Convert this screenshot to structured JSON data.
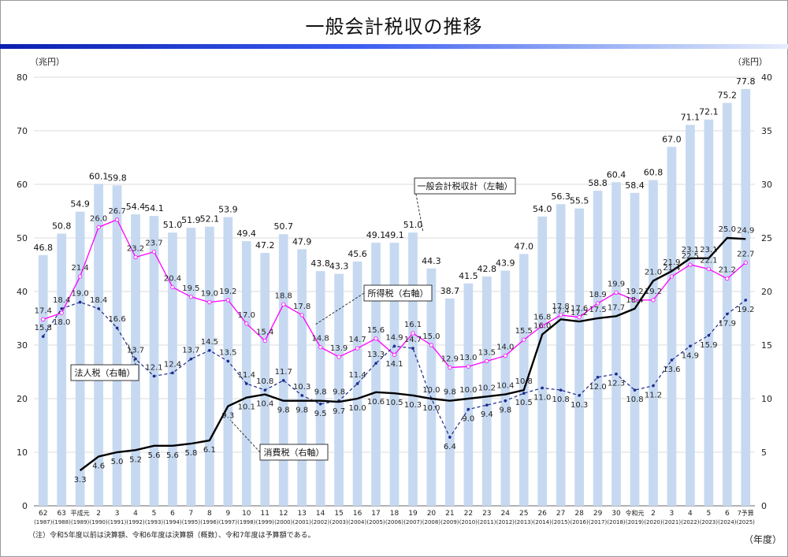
{
  "title": "一般会計税収の推移",
  "note": "（注）令和5年度以前は決算額、令和6年度は決算額（概数）、令和7年度は予算額である。",
  "colors": {
    "bar": "#c6d9f1",
    "total": "#000000",
    "income": "#ff00ff",
    "corporate": "#1b2a8a",
    "consumption": "#000000",
    "band": "#1a2fd0"
  },
  "chart_data": {
    "type": "bar",
    "title": "一般会計税収の推移",
    "ylabel_left": "（兆円）",
    "ylabel_right": "（兆円）",
    "xlabel": "（年度）",
    "ylim_left": [
      0,
      80
    ],
    "ylim_right": [
      0,
      40
    ],
    "yticks_left": [
      "0",
      "10",
      "20",
      "30",
      "40",
      "50",
      "60",
      "70",
      "80"
    ],
    "yticks_right": [
      "0",
      "5",
      "10",
      "15",
      "20",
      "25",
      "30",
      "35",
      "40"
    ],
    "grid": true,
    "categories": [
      "62",
      "63",
      "平成元",
      "2",
      "3",
      "4",
      "5",
      "6",
      "7",
      "8",
      "9",
      "10",
      "11",
      "12",
      "13",
      "14",
      "15",
      "16",
      "17",
      "18",
      "19",
      "20",
      "21",
      "22",
      "23",
      "24",
      "25",
      "26",
      "27",
      "28",
      "29",
      "30",
      "令和元",
      "2",
      "3",
      "4",
      "5",
      "6",
      "7予算"
    ],
    "years": [
      "(1987)",
      "(1988)",
      "(1989)",
      "(1990)",
      "(1991)",
      "(1992)",
      "(1993)",
      "(1994)",
      "(1995)",
      "(1996)",
      "(1997)",
      "(1998)",
      "(1999)",
      "(2000)",
      "(2001)",
      "(2002)",
      "(2003)",
      "(2004)",
      "(2005)",
      "(2006)",
      "(2007)",
      "(2008)",
      "(2009)",
      "(2010)",
      "(2011)",
      "(2012)",
      "(2013)",
      "(2014)",
      "(2015)",
      "(2016)",
      "(2017)",
      "(2018)",
      "(2019)",
      "(2020)",
      "(2021)",
      "(2022)",
      "(2023)",
      "(2024)",
      "(2025)"
    ],
    "series": [
      {
        "name": "一般会計税収計（左軸）",
        "type": "bar",
        "axis": "left",
        "values": [
          46.8,
          50.8,
          54.9,
          60.1,
          59.8,
          54.4,
          54.1,
          51.0,
          51.9,
          52.1,
          53.9,
          49.4,
          47.2,
          50.7,
          47.9,
          43.8,
          43.3,
          45.6,
          49.1,
          49.1,
          51.0,
          44.3,
          38.7,
          41.5,
          42.8,
          43.9,
          47.0,
          54.0,
          56.3,
          55.5,
          58.8,
          60.4,
          58.4,
          60.8,
          67.0,
          71.1,
          72.1,
          75.2,
          77.8
        ]
      },
      {
        "name": "所得税（右軸）",
        "type": "line",
        "axis": "right",
        "values": [
          17.4,
          18.0,
          21.4,
          26.0,
          26.7,
          23.2,
          23.7,
          20.4,
          19.5,
          19.0,
          19.2,
          17.0,
          15.4,
          18.8,
          17.8,
          14.8,
          13.9,
          14.7,
          15.6,
          14.1,
          16.1,
          15.0,
          12.9,
          13.0,
          13.5,
          14.0,
          15.5,
          16.8,
          17.8,
          17.6,
          18.9,
          19.9,
          19.2,
          19.2,
          21.4,
          22.5,
          22.1,
          21.2,
          22.7
        ]
      },
      {
        "name": "法人税（右軸）",
        "type": "line",
        "axis": "right",
        "values": [
          15.8,
          18.4,
          19.0,
          18.4,
          16.6,
          13.7,
          12.1,
          12.4,
          13.7,
          14.5,
          13.5,
          11.4,
          10.8,
          11.7,
          10.3,
          9.5,
          9.8,
          11.4,
          13.3,
          14.9,
          14.7,
          10.0,
          6.4,
          9.0,
          9.4,
          9.8,
          10.5,
          11.0,
          10.8,
          10.3,
          12.0,
          12.3,
          10.8,
          11.2,
          13.6,
          14.9,
          15.9,
          17.9,
          19.2
        ]
      },
      {
        "name": "消費税（右軸）",
        "type": "line",
        "axis": "right",
        "values": [
          null,
          null,
          3.3,
          4.6,
          5.0,
          5.2,
          5.6,
          5.6,
          5.8,
          6.1,
          9.3,
          10.1,
          10.4,
          9.8,
          9.8,
          9.8,
          9.7,
          10.0,
          10.6,
          10.5,
          10.3,
          10.0,
          9.8,
          10.0,
          10.2,
          10.4,
          10.8,
          16.0,
          17.4,
          17.2,
          17.5,
          17.7,
          18.4,
          21.0,
          21.9,
          23.1,
          23.1,
          25.0,
          24.9
        ]
      }
    ],
    "annotations": [
      "一般会計税収計（左軸）",
      "所得税（右軸）",
      "法人税（右軸）",
      "消費税（右軸）"
    ]
  }
}
